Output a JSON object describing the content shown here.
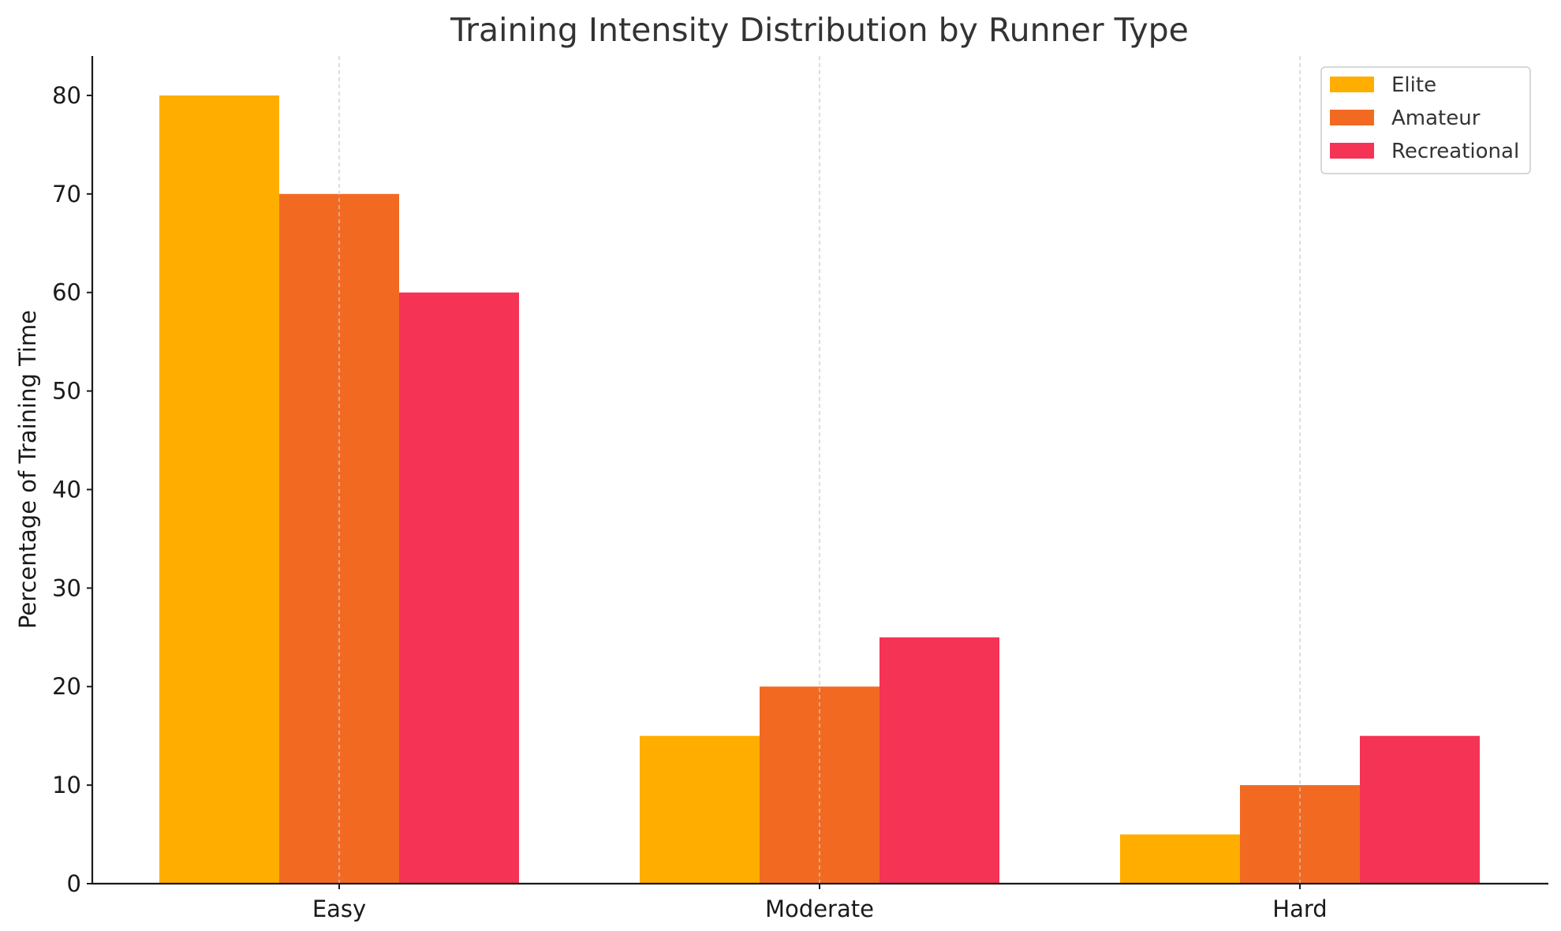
{
  "chart_data": {
    "type": "bar",
    "title": "Training Intensity Distribution by Runner Type",
    "xlabel": "",
    "ylabel": "Percentage of Training Time",
    "categories": [
      "Easy",
      "Moderate",
      "Hard"
    ],
    "series": [
      {
        "name": "Elite",
        "values": [
          80,
          15,
          5
        ],
        "color": "#FFAE00"
      },
      {
        "name": "Amateur",
        "values": [
          70,
          20,
          10
        ],
        "color": "#F26A22"
      },
      {
        "name": "Recreational",
        "values": [
          60,
          25,
          15
        ],
        "color": "#F53355"
      }
    ],
    "ylim": [
      0,
      84
    ],
    "yticks": [
      0,
      10,
      20,
      30,
      40,
      50,
      60,
      70,
      80
    ],
    "grid": {
      "x": true,
      "y": false,
      "style": "dashed",
      "color": "#cccccc"
    },
    "legend": {
      "position": "top-right"
    }
  }
}
